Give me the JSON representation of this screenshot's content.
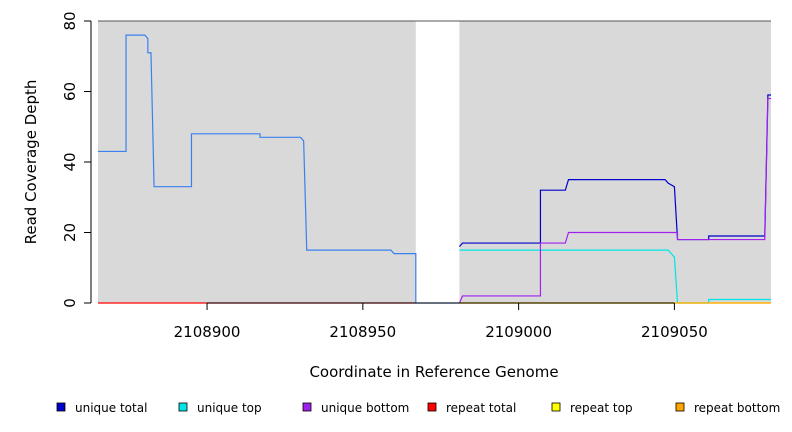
{
  "chart_data": {
    "type": "line",
    "title": "",
    "xlabel": "Coordinate in Reference Genome",
    "ylabel": "Read Coverage Depth",
    "xlim": [
      2108865,
      2109081
    ],
    "ylim": [
      0,
      80
    ],
    "x_ticks": [
      2108900,
      2108950,
      2109000,
      2109050
    ],
    "x_tick_labels": [
      "2108900",
      "2108950",
      "2109000",
      "2109050"
    ],
    "y_ticks": [
      0,
      20,
      40,
      60,
      80
    ],
    "y_tick_labels": [
      "0",
      "20",
      "40",
      "60",
      "80"
    ],
    "shaded_regions": [
      [
        2108865,
        2108967
      ],
      [
        2108981,
        2109081
      ]
    ],
    "shade_color": "#d9d9d9",
    "grid": false,
    "legend_position": "bottom",
    "series": [
      {
        "name": "unique total",
        "color": "#0000cd",
        "points": [
          [
            2108981,
            16
          ],
          [
            2108982,
            17
          ],
          [
            2109007,
            17
          ],
          [
            2109007,
            32
          ],
          [
            2109015,
            32
          ],
          [
            2109016,
            35
          ],
          [
            2109047,
            35
          ],
          [
            2109048,
            34
          ],
          [
            2109050,
            33
          ],
          [
            2109051,
            18
          ],
          [
            2109061,
            18
          ],
          [
            2109061,
            19
          ],
          [
            2109079,
            19
          ],
          [
            2109080,
            59
          ],
          [
            2109081,
            59
          ]
        ]
      },
      {
        "name": "unique top",
        "color": "#00e5e5",
        "points": [
          [
            2108981,
            15
          ],
          [
            2109048,
            15
          ],
          [
            2109049,
            14
          ],
          [
            2109050,
            13
          ],
          [
            2109051,
            0
          ],
          [
            2109061,
            0
          ],
          [
            2109061,
            1
          ],
          [
            2109081,
            1
          ]
        ]
      },
      {
        "name": "unique bottom",
        "color": "#a020f0",
        "points": [
          [
            2108981,
            0
          ],
          [
            2108982,
            2
          ],
          [
            2109007,
            2
          ],
          [
            2109007,
            17
          ],
          [
            2109015,
            17
          ],
          [
            2109016,
            20
          ],
          [
            2109051,
            20
          ],
          [
            2109051,
            18
          ],
          [
            2109079,
            18
          ],
          [
            2109080,
            58
          ],
          [
            2109081,
            58
          ]
        ]
      },
      {
        "name": "repeat total",
        "color": "#ff0000",
        "points": [
          [
            2108865,
            0
          ],
          [
            2108967,
            0
          ]
        ]
      },
      {
        "name": "repeat top",
        "color": "#ffff00",
        "points": [
          [
            2108981,
            0
          ],
          [
            2109081,
            0
          ]
        ]
      },
      {
        "name": "repeat bottom",
        "color": "#ffa500",
        "points": [
          [
            2108981,
            0
          ],
          [
            2109081,
            0
          ]
        ]
      },
      {
        "name": "",
        "color": "#3a80f0",
        "points": [
          [
            2108865,
            43
          ],
          [
            2108874,
            43
          ],
          [
            2108874,
            76
          ],
          [
            2108880,
            76
          ],
          [
            2108881,
            75
          ],
          [
            2108881,
            71
          ],
          [
            2108882,
            71
          ],
          [
            2108883,
            33
          ],
          [
            2108895,
            33
          ],
          [
            2108895,
            48
          ],
          [
            2108917,
            48
          ],
          [
            2108917,
            47
          ],
          [
            2108930,
            47
          ],
          [
            2108931,
            46
          ],
          [
            2108932,
            15
          ],
          [
            2108959,
            15
          ],
          [
            2108960,
            14
          ],
          [
            2108967,
            14
          ],
          [
            2108967,
            0
          ],
          [
            2108981,
            0
          ],
          [
            2108981,
            0
          ]
        ]
      }
    ],
    "legend": [
      {
        "label": "unique total",
        "color": "#0000cd"
      },
      {
        "label": "unique top",
        "color": "#00e5e5"
      },
      {
        "label": "unique bottom",
        "color": "#a020f0"
      },
      {
        "label": "repeat total",
        "color": "#ff0000"
      },
      {
        "label": "repeat top",
        "color": "#ffff00"
      },
      {
        "label": "repeat bottom",
        "color": "#ffa500"
      }
    ]
  }
}
